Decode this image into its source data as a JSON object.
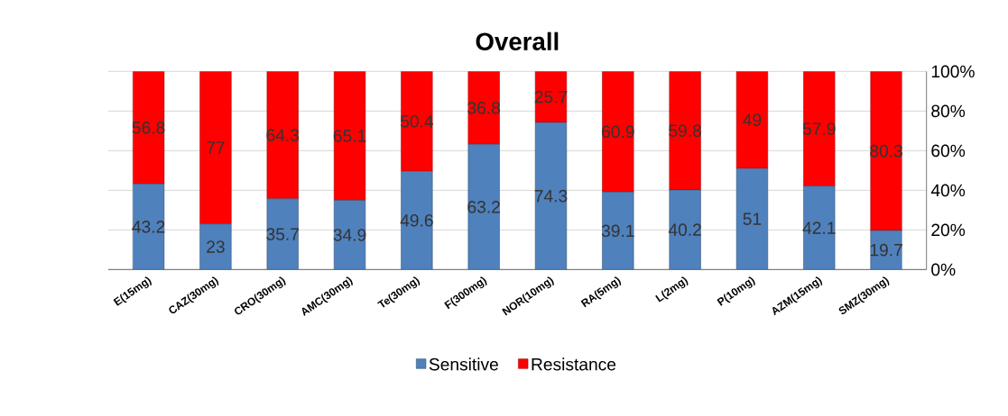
{
  "chart_data": {
    "type": "bar",
    "title": "Overall",
    "stacked": true,
    "data_labels": true,
    "grid": "y",
    "legend": "bottom",
    "categories": [
      "E(15mg)",
      "CAZ(30mg)",
      "CRO(30mg)",
      "AMC(30mg)",
      "Te(30mg)",
      "F(300mg)",
      "NOR(10mg)",
      "RA(5mg)",
      "L(2mg)",
      "P(10mg)",
      "AZM(15mg)",
      "SMZ(30mg)"
    ],
    "series": [
      {
        "name": "Sensitive",
        "color": "#4f81bd",
        "values": [
          43.2,
          23,
          35.7,
          34.9,
          49.6,
          63.2,
          74.3,
          39.1,
          40.2,
          51,
          42.1,
          19.7
        ]
      },
      {
        "name": "Resistance",
        "color": "#ff0000",
        "values": [
          56.8,
          77,
          64.3,
          65.1,
          50.4,
          36.8,
          25.7,
          60.9,
          59.8,
          49,
          57.9,
          80.3
        ]
      }
    ],
    "ylim": [
      0,
      100
    ],
    "yticks": [
      {
        "value": 0,
        "label": "0%"
      },
      {
        "value": 20,
        "label": "20%"
      },
      {
        "value": 40,
        "label": "40%"
      },
      {
        "value": 60,
        "label": "60%"
      },
      {
        "value": 80,
        "label": "80%"
      },
      {
        "value": 100,
        "label": "100%"
      }
    ]
  }
}
